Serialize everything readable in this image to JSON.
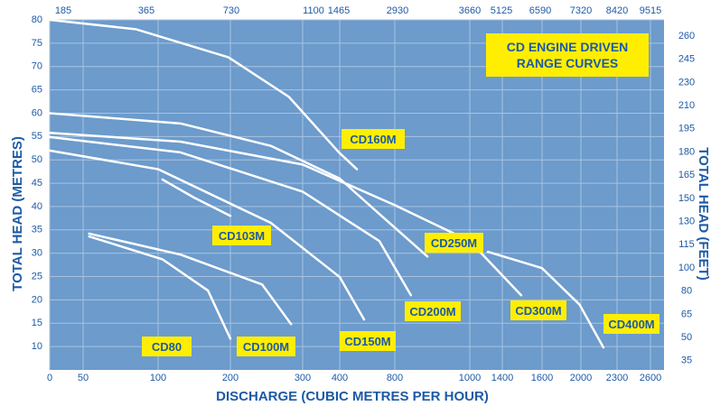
{
  "chart_data": {
    "type": "line",
    "title": "CD ENGINE DRIVEN RANGE CURVES",
    "xlabel": "DISCHARGE (CUBIC METRES PER HOUR)",
    "ylabel": "TOTAL HEAD (METRES)",
    "y2label": "TOTAL HEAD (FEET)",
    "xlim": [
      0,
      2600
    ],
    "xticks": [
      0,
      50,
      100,
      200,
      300,
      400,
      800,
      1000,
      1400,
      1600,
      2000,
      2300,
      2600
    ],
    "x2ticks": [
      185,
      365,
      730,
      1100,
      1465,
      2930,
      3660,
      5125,
      6590,
      7320,
      8420,
      9515
    ],
    "ylim": [
      5,
      80
    ],
    "yticks": [
      10,
      15,
      20,
      25,
      30,
      35,
      40,
      45,
      50,
      55,
      60,
      65,
      70,
      75,
      80
    ],
    "y2ticks": [
      260,
      245,
      230,
      210,
      195,
      180,
      165,
      150,
      130,
      115,
      100,
      80,
      65,
      50,
      35
    ],
    "grid": true,
    "series": [
      {
        "name": "CD160M",
        "color": "#ffffff",
        "x": [
          0,
          85,
          197,
          281,
          398,
          525
        ],
        "values": [
          80,
          78,
          72,
          63.5,
          51.6,
          48
        ]
      },
      {
        "name": "CD250M",
        "color": "#ffffff",
        "x": [
          0,
          131,
          256,
          400,
          688,
          887
        ],
        "values": [
          60,
          57.8,
          53,
          46,
          38.4,
          29.3
        ]
      },
      {
        "name": "CD300M",
        "color": "#ffffff",
        "x": [
          0,
          131,
          300,
          800,
          1000,
          1495
        ],
        "values": [
          55.8,
          53.9,
          49,
          40.3,
          32.6,
          21
        ]
      },
      {
        "name": "CD200M",
        "color": "#ffffff",
        "x": [
          0,
          131,
          300,
          688,
          843
        ],
        "values": [
          54.9,
          51.6,
          43.2,
          32.6,
          21
        ]
      },
      {
        "name": "CD150M",
        "color": "#ffffff",
        "x": [
          0,
          100,
          256,
          400,
          577
        ],
        "values": [
          52,
          48,
          36.5,
          24.9,
          15.8
        ]
      },
      {
        "name": "CD103M",
        "color": "#ffffff",
        "x": [
          106,
          150,
          200
        ],
        "values": [
          45.8,
          41.9,
          38
        ]
      },
      {
        "name": "CD100M",
        "color": "#ffffff",
        "x": [
          54,
          131,
          244,
          284
        ],
        "values": [
          34.2,
          29.7,
          23.3,
          14.8
        ]
      },
      {
        "name": "CD80",
        "color": "#ffffff",
        "x": [
          54,
          106,
          169,
          200
        ],
        "values": [
          33.6,
          28.7,
          22,
          11.7
        ]
      },
      {
        "name": "CD400M",
        "color": "#ffffff",
        "x": [
          1222,
          1600,
          1986,
          2187
        ],
        "values": [
          30.3,
          26.8,
          19,
          9.8
        ]
      }
    ]
  }
}
